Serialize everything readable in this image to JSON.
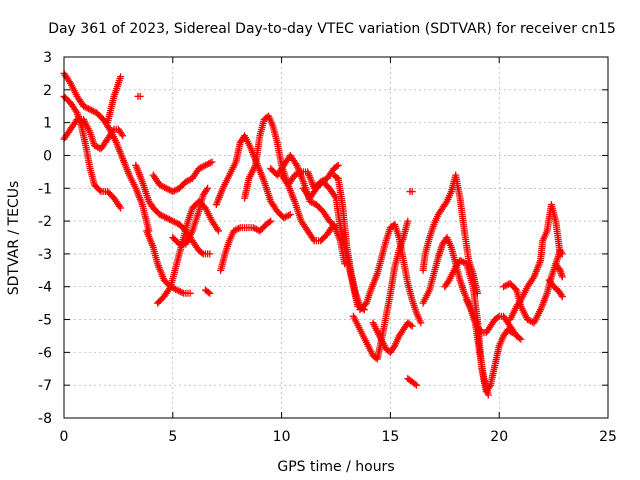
{
  "chart_data": {
    "type": "scatter",
    "title": "Day 361 of 2023, Sidereal Day-to-day VTEC variation (SDTVAR) for receiver cn15",
    "xlabel": "GPS time / hours",
    "ylabel": "SDTVAR / TECUs",
    "xlim": [
      0,
      25
    ],
    "ylim": [
      -8,
      3
    ],
    "xticks": [
      0,
      5,
      10,
      15,
      20,
      25
    ],
    "yticks": [
      -8,
      -7,
      -6,
      -5,
      -4,
      -3,
      -2,
      -1,
      0,
      1,
      2,
      3
    ],
    "grid": true,
    "marker": "+",
    "color": "#ff0000",
    "tracks": [
      [
        [
          0.0,
          2.5
        ],
        [
          0.3,
          2.2
        ],
        [
          0.6,
          1.8
        ],
        [
          0.9,
          1.5
        ],
        [
          1.2,
          1.4
        ],
        [
          1.5,
          1.3
        ],
        [
          1.8,
          1.1
        ],
        [
          2.1,
          0.8
        ],
        [
          2.4,
          0.4
        ],
        [
          2.7,
          -0.1
        ],
        [
          3.0,
          -0.6
        ],
        [
          3.3,
          -1.0
        ],
        [
          3.6,
          -1.5
        ],
        [
          3.9,
          -2.3
        ]
      ],
      [
        [
          0.0,
          1.8
        ],
        [
          0.3,
          1.6
        ],
        [
          0.6,
          1.3
        ],
        [
          0.8,
          0.9
        ],
        [
          1.0,
          0.3
        ],
        [
          1.2,
          -0.4
        ],
        [
          1.4,
          -0.9
        ],
        [
          1.7,
          -1.1
        ],
        [
          2.0,
          -1.1
        ],
        [
          2.3,
          -1.3
        ],
        [
          2.6,
          -1.6
        ]
      ],
      [
        [
          0.0,
          0.5
        ],
        [
          0.3,
          0.8
        ],
        [
          0.6,
          1.1
        ],
        [
          0.9,
          1.1
        ],
        [
          1.2,
          0.7
        ],
        [
          1.4,
          0.3
        ],
        [
          1.7,
          0.2
        ],
        [
          2.0,
          0.5
        ],
        [
          2.3,
          0.8
        ],
        [
          2.5,
          0.8
        ],
        [
          2.7,
          0.6
        ]
      ],
      [
        [
          2.0,
          1.0
        ],
        [
          2.3,
          1.8
        ],
        [
          2.6,
          2.4
        ]
      ],
      [
        [
          3.4,
          1.8
        ],
        [
          3.5,
          1.8
        ]
      ],
      [
        [
          3.3,
          -0.3
        ],
        [
          3.6,
          -0.8
        ],
        [
          3.9,
          -1.4
        ],
        [
          4.1,
          -1.6
        ],
        [
          4.4,
          -1.8
        ],
        [
          4.7,
          -1.9
        ],
        [
          5.0,
          -2.0
        ],
        [
          5.3,
          -2.1
        ],
        [
          5.6,
          -2.3
        ],
        [
          5.9,
          -2.6
        ],
        [
          6.2,
          -2.9
        ],
        [
          6.4,
          -3.0
        ],
        [
          6.7,
          -3.0
        ]
      ],
      [
        [
          3.8,
          -2.3
        ],
        [
          4.1,
          -2.8
        ],
        [
          4.3,
          -3.3
        ],
        [
          4.6,
          -3.8
        ],
        [
          4.9,
          -4.0
        ],
        [
          5.2,
          -4.1
        ],
        [
          5.5,
          -4.2
        ],
        [
          5.8,
          -4.2
        ]
      ],
      [
        [
          4.1,
          -0.6
        ],
        [
          4.4,
          -0.9
        ],
        [
          4.7,
          -1.0
        ],
        [
          5.0,
          -1.1
        ],
        [
          5.3,
          -1.0
        ],
        [
          5.6,
          -0.8
        ],
        [
          5.9,
          -0.7
        ],
        [
          6.2,
          -0.4
        ],
        [
          6.5,
          -0.3
        ],
        [
          6.8,
          -0.2
        ]
      ],
      [
        [
          4.3,
          -4.5
        ],
        [
          4.6,
          -4.3
        ],
        [
          4.9,
          -4.0
        ],
        [
          5.1,
          -3.5
        ],
        [
          5.3,
          -3.0
        ],
        [
          5.5,
          -2.5
        ],
        [
          5.7,
          -2.0
        ],
        [
          5.9,
          -1.6
        ],
        [
          6.2,
          -1.4
        ],
        [
          6.5,
          -1.6
        ],
        [
          6.8,
          -2.0
        ],
        [
          7.1,
          -2.3
        ]
      ],
      [
        [
          5.0,
          -2.5
        ],
        [
          5.3,
          -2.7
        ],
        [
          5.6,
          -2.7
        ],
        [
          5.9,
          -2.3
        ],
        [
          6.2,
          -1.7
        ],
        [
          6.4,
          -1.2
        ],
        [
          6.6,
          -1.0
        ]
      ],
      [
        [
          6.5,
          -4.1
        ],
        [
          6.7,
          -4.2
        ]
      ],
      [
        [
          7.2,
          -3.5
        ],
        [
          7.4,
          -3.0
        ],
        [
          7.6,
          -2.6
        ],
        [
          7.8,
          -2.3
        ],
        [
          8.1,
          -2.2
        ],
        [
          8.4,
          -2.2
        ],
        [
          8.7,
          -2.2
        ],
        [
          9.0,
          -2.3
        ],
        [
          9.3,
          -2.1
        ],
        [
          9.5,
          -2.0
        ]
      ],
      [
        [
          7.0,
          -1.5
        ],
        [
          7.3,
          -1.0
        ],
        [
          7.6,
          -0.6
        ],
        [
          7.9,
          -0.2
        ],
        [
          8.1,
          0.4
        ],
        [
          8.3,
          0.6
        ],
        [
          8.6,
          0.2
        ],
        [
          8.9,
          -0.3
        ],
        [
          9.2,
          -0.8
        ],
        [
          9.5,
          -1.4
        ],
        [
          9.8,
          -1.7
        ],
        [
          10.1,
          -1.9
        ],
        [
          10.4,
          -1.8
        ]
      ],
      [
        [
          8.3,
          -1.3
        ],
        [
          8.5,
          -0.7
        ],
        [
          8.8,
          -0.3
        ],
        [
          9.0,
          0.6
        ],
        [
          9.2,
          1.1
        ],
        [
          9.4,
          1.2
        ],
        [
          9.6,
          0.9
        ],
        [
          9.8,
          0.4
        ],
        [
          10.0,
          -0.3
        ],
        [
          10.3,
          -0.9
        ],
        [
          10.6,
          -1.4
        ],
        [
          10.9,
          -2.0
        ],
        [
          11.2,
          -2.3
        ],
        [
          11.5,
          -2.6
        ],
        [
          11.8,
          -2.6
        ],
        [
          12.1,
          -2.4
        ],
        [
          12.4,
          -2.1
        ],
        [
          12.7,
          -2.6
        ],
        [
          12.9,
          -3.3
        ]
      ],
      [
        [
          9.5,
          -0.4
        ],
        [
          9.8,
          -0.6
        ],
        [
          10.1,
          -0.3
        ],
        [
          10.4,
          0.0
        ],
        [
          10.7,
          -0.3
        ],
        [
          11.0,
          -0.8
        ],
        [
          11.3,
          -1.4
        ],
        [
          11.6,
          -1.5
        ],
        [
          11.9,
          -1.7
        ],
        [
          12.2,
          -2.0
        ],
        [
          12.5,
          -2.2
        ]
      ],
      [
        [
          10.0,
          -0.6
        ],
        [
          10.3,
          -0.9
        ],
        [
          10.6,
          -0.6
        ],
        [
          10.9,
          -0.5
        ],
        [
          11.2,
          -0.5
        ],
        [
          11.5,
          -1.0
        ],
        [
          11.8,
          -0.8
        ],
        [
          12.1,
          -0.7
        ],
        [
          12.4,
          -0.4
        ],
        [
          12.6,
          -0.3
        ]
      ],
      [
        [
          11.0,
          -1.0
        ],
        [
          11.3,
          -1.3
        ],
        [
          11.6,
          -1.0
        ],
        [
          11.9,
          -0.8
        ],
        [
          12.2,
          -1.0
        ],
        [
          12.5,
          -1.3
        ],
        [
          12.7,
          -2.2
        ],
        [
          12.9,
          -2.8
        ],
        [
          13.1,
          -3.4
        ],
        [
          13.3,
          -4.0
        ],
        [
          13.5,
          -4.6
        ]
      ],
      [
        [
          12.4,
          -0.6
        ],
        [
          12.6,
          -0.7
        ],
        [
          12.8,
          -1.5
        ],
        [
          13.0,
          -2.8
        ],
        [
          13.2,
          -3.6
        ],
        [
          13.4,
          -4.2
        ],
        [
          13.6,
          -4.6
        ],
        [
          13.8,
          -4.7
        ]
      ],
      [
        [
          13.3,
          -4.9
        ],
        [
          13.6,
          -5.3
        ],
        [
          13.9,
          -5.7
        ],
        [
          14.2,
          -6.1
        ],
        [
          14.4,
          -6.2
        ],
        [
          14.6,
          -5.6
        ],
        [
          14.8,
          -4.9
        ],
        [
          15.0,
          -4.2
        ],
        [
          15.2,
          -3.4
        ],
        [
          15.4,
          -2.9
        ],
        [
          15.6,
          -2.5
        ],
        [
          15.8,
          -2.0
        ]
      ],
      [
        [
          13.6,
          -4.7
        ],
        [
          13.9,
          -4.5
        ],
        [
          14.1,
          -4.1
        ],
        [
          14.4,
          -3.6
        ],
        [
          14.6,
          -3.1
        ],
        [
          14.8,
          -2.6
        ],
        [
          15.0,
          -2.2
        ],
        [
          15.2,
          -2.1
        ],
        [
          15.4,
          -2.5
        ],
        [
          15.6,
          -3.2
        ],
        [
          15.8,
          -3.9
        ],
        [
          16.0,
          -4.4
        ],
        [
          16.2,
          -4.8
        ],
        [
          16.4,
          -5.1
        ]
      ],
      [
        [
          14.2,
          -5.1
        ],
        [
          14.5,
          -5.5
        ],
        [
          14.8,
          -5.9
        ],
        [
          15.0,
          -6.0
        ],
        [
          15.2,
          -5.8
        ],
        [
          15.4,
          -5.5
        ],
        [
          15.6,
          -5.3
        ],
        [
          15.8,
          -5.1
        ],
        [
          16.0,
          -5.2
        ]
      ],
      [
        [
          15.9,
          -1.1
        ],
        [
          16.0,
          -1.1
        ]
      ],
      [
        [
          15.8,
          -6.8
        ],
        [
          16.0,
          -6.9
        ],
        [
          16.2,
          -7.0
        ]
      ],
      [
        [
          16.5,
          -3.5
        ],
        [
          16.6,
          -3.0
        ],
        [
          16.8,
          -2.5
        ],
        [
          17.0,
          -2.1
        ],
        [
          17.2,
          -1.8
        ],
        [
          17.4,
          -1.6
        ],
        [
          17.6,
          -1.4
        ],
        [
          17.8,
          -1.1
        ],
        [
          18.0,
          -0.6
        ],
        [
          18.2,
          -1.3
        ],
        [
          18.4,
          -2.3
        ],
        [
          18.6,
          -3.2
        ],
        [
          18.8,
          -3.6
        ],
        [
          19.0,
          -4.2
        ]
      ],
      [
        [
          16.5,
          -4.5
        ],
        [
          16.8,
          -4.1
        ],
        [
          17.0,
          -3.6
        ],
        [
          17.2,
          -3.1
        ],
        [
          17.4,
          -2.7
        ],
        [
          17.6,
          -2.5
        ],
        [
          17.8,
          -2.8
        ],
        [
          18.0,
          -3.3
        ],
        [
          18.2,
          -3.8
        ],
        [
          18.4,
          -4.2
        ],
        [
          18.6,
          -4.5
        ],
        [
          18.8,
          -4.8
        ],
        [
          19.0,
          -5.2
        ],
        [
          19.2,
          -5.4
        ],
        [
          19.4,
          -5.4
        ],
        [
          19.6,
          -5.2
        ],
        [
          19.8,
          -5.0
        ],
        [
          20.0,
          -4.9
        ],
        [
          20.2,
          -4.9
        ],
        [
          20.4,
          -5.1
        ],
        [
          20.6,
          -5.3
        ],
        [
          20.8,
          -5.5
        ],
        [
          21.0,
          -5.6
        ]
      ],
      [
        [
          17.5,
          -4.0
        ],
        [
          17.7,
          -3.8
        ],
        [
          18.0,
          -3.4
        ],
        [
          18.2,
          -3.2
        ],
        [
          18.5,
          -3.3
        ],
        [
          18.8,
          -4.0
        ],
        [
          19.0,
          -5.0
        ],
        [
          19.2,
          -6.5
        ],
        [
          19.4,
          -7.2
        ],
        [
          19.6,
          -7.0
        ],
        [
          19.8,
          -6.4
        ],
        [
          20.0,
          -5.8
        ],
        [
          20.2,
          -5.5
        ],
        [
          20.4,
          -5.3
        ],
        [
          20.6,
          -5.4
        ]
      ],
      [
        [
          18.5,
          -4.4
        ],
        [
          18.7,
          -4.7
        ],
        [
          18.9,
          -5.1
        ],
        [
          19.1,
          -6.0
        ],
        [
          19.3,
          -6.8
        ],
        [
          19.5,
          -7.3
        ]
      ],
      [
        [
          20.2,
          -4.0
        ],
        [
          20.5,
          -3.9
        ],
        [
          20.8,
          -4.1
        ],
        [
          21.0,
          -4.6
        ],
        [
          21.3,
          -5.0
        ],
        [
          21.6,
          -5.1
        ],
        [
          21.9,
          -4.7
        ],
        [
          22.2,
          -4.2
        ],
        [
          22.4,
          -3.7
        ],
        [
          22.6,
          -3.3
        ],
        [
          22.8,
          -2.9
        ],
        [
          22.9,
          -3.0
        ]
      ],
      [
        [
          20.5,
          -5.0
        ],
        [
          20.8,
          -4.6
        ],
        [
          21.0,
          -4.4
        ],
        [
          21.3,
          -4.0
        ],
        [
          21.6,
          -3.7
        ],
        [
          21.9,
          -3.2
        ],
        [
          22.0,
          -2.6
        ],
        [
          22.2,
          -2.3
        ],
        [
          22.4,
          -1.5
        ],
        [
          22.6,
          -2.0
        ],
        [
          22.8,
          -3.0
        ]
      ],
      [
        [
          22.3,
          -3.8
        ],
        [
          22.5,
          -4.0
        ],
        [
          22.7,
          -4.1
        ],
        [
          22.9,
          -4.3
        ]
      ],
      [
        [
          22.6,
          -3.3
        ],
        [
          22.8,
          -3.5
        ],
        [
          22.9,
          -3.7
        ]
      ]
    ]
  }
}
